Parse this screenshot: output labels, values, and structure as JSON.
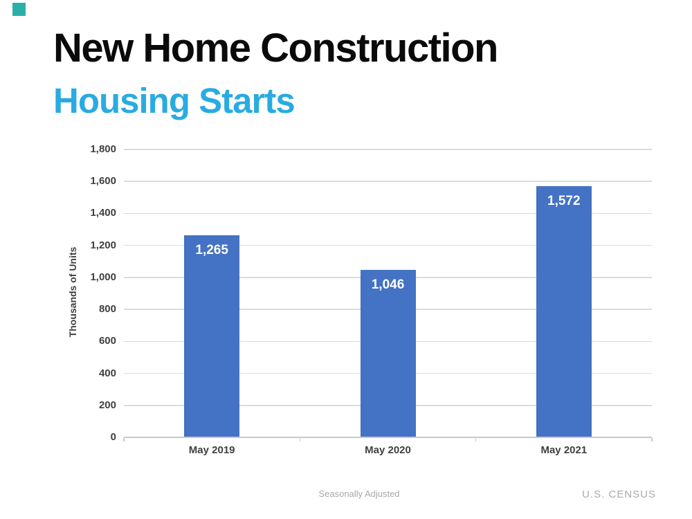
{
  "slide": {
    "title": "New Home Construction",
    "subtitle": "Housing Starts",
    "title_color": "#0a0a0a",
    "subtitle_color": "#29ABE2",
    "accent_square_color": "#2BB0A9",
    "footer_note": "Seasonally Adjusted",
    "source": "U.S. CENSUS"
  },
  "chart_data": {
    "type": "bar",
    "title": "",
    "categories": [
      "May 2019",
      "May 2020",
      "May 2021"
    ],
    "values": [
      1265,
      1046,
      1572
    ],
    "value_labels": [
      "1,265",
      "1,046",
      "1,572"
    ],
    "xlabel": "",
    "ylabel": "Thousands of Units",
    "ylim": [
      0,
      1800
    ],
    "ytick_step": 200,
    "ytick_labels": [
      "0",
      "200",
      "400",
      "600",
      "800",
      "1,000",
      "1,200",
      "1,400",
      "1,600",
      "1,800"
    ],
    "grid": true,
    "legend": false,
    "bar_color": "#4472C4",
    "value_label_color": "#FFFFFF",
    "axis_label_color": "#404040",
    "gridline_color": "#DBDBDB",
    "axis_line_color": "#C9C9C9"
  }
}
